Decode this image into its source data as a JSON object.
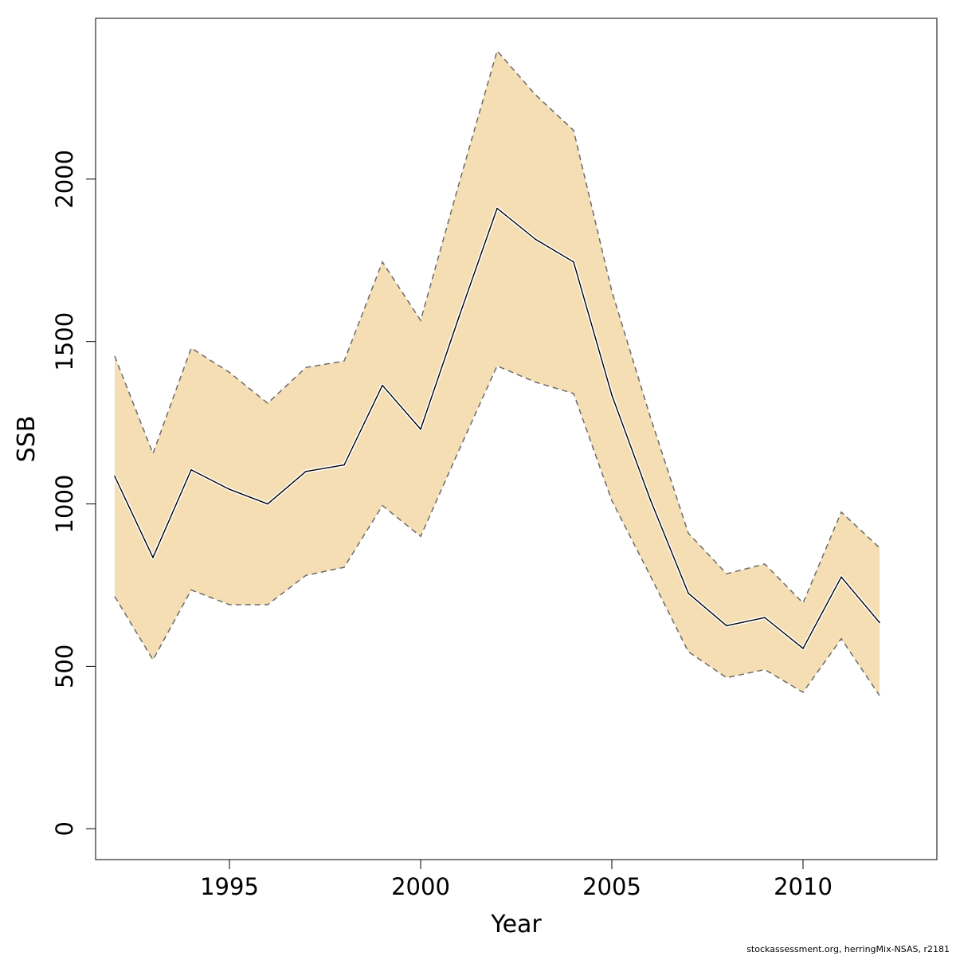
{
  "chart_data": {
    "type": "line",
    "xlabel": "Year",
    "ylabel": "SSB",
    "xlim": [
      1991.5,
      2013.5
    ],
    "ylim": [
      -95,
      2495
    ],
    "x_ticks": [
      1995,
      2000,
      2005,
      2010
    ],
    "y_ticks": [
      0,
      500,
      1000,
      1500,
      2000
    ],
    "x": [
      1992,
      1993,
      1994,
      1995,
      1996,
      1997,
      1998,
      1999,
      2000,
      2001,
      2002,
      2003,
      2004,
      2005,
      2006,
      2007,
      2008,
      2009,
      2010,
      2011,
      2012
    ],
    "series": [
      {
        "values": [
          1085,
          835,
          1105,
          1045,
          1000,
          1100,
          1120,
          1365,
          1230,
          1575,
          1910,
          1815,
          1745,
          1335,
          1015,
          725,
          625,
          650,
          555,
          775,
          635
        ]
      }
    ],
    "band_upper": [
      1455,
      1155,
      1480,
      1405,
      1310,
      1420,
      1440,
      1745,
      1565,
      1985,
      2395,
      2260,
      2150,
      1655,
      1270,
      910,
      785,
      815,
      695,
      975,
      865
    ],
    "band_lower": [
      715,
      520,
      735,
      690,
      690,
      780,
      805,
      995,
      900,
      1165,
      1425,
      1375,
      1340,
      1010,
      780,
      545,
      465,
      490,
      420,
      585,
      410
    ],
    "grid": false,
    "legend": "none",
    "colors": {
      "band": "#f5deb3",
      "line": "#000000",
      "band_edge": "#6b6b6b"
    }
  },
  "footer": {
    "note": "stockassessment.org, herringMix-NSAS, r2181"
  }
}
